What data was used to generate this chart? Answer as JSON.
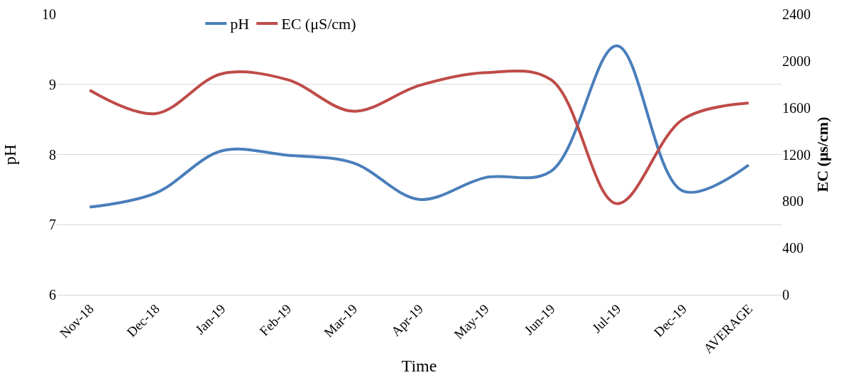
{
  "chart_data": {
    "type": "line",
    "xlabel": "Time",
    "ylabel": "pH",
    "y2label": "EC (μs/cm)",
    "categories": [
      "Nov-18",
      "Dec-18",
      "Jan-19",
      "Feb-19",
      "Mar-19",
      "Apr-19",
      "May-19",
      "Jun-19",
      "Jul-19",
      "Dec-19",
      "AVERAGE"
    ],
    "series": [
      {
        "name": "pH",
        "color": "#4a7ebb",
        "values": [
          7.25,
          7.45,
          8.05,
          7.99,
          7.88,
          7.36,
          7.67,
          7.76,
          9.55,
          7.48,
          7.85
        ]
      },
      {
        "name": "EC (μS/cm)",
        "color": "#be4b48",
        "axis": "y2",
        "values": [
          1750,
          1550,
          1890,
          1840,
          1570,
          1790,
          1900,
          1840,
          780,
          1500,
          1640
        ]
      }
    ],
    "ylim": [
      6,
      10
    ],
    "yticks": [
      6,
      7,
      8,
      9,
      10
    ],
    "y2lim": [
      0,
      2400
    ],
    "y2ticks": [
      0,
      400,
      800,
      1200,
      1600,
      2000,
      2400
    ],
    "grid": "y",
    "legend": "top",
    "marker": "none",
    "line_style": "solid"
  }
}
